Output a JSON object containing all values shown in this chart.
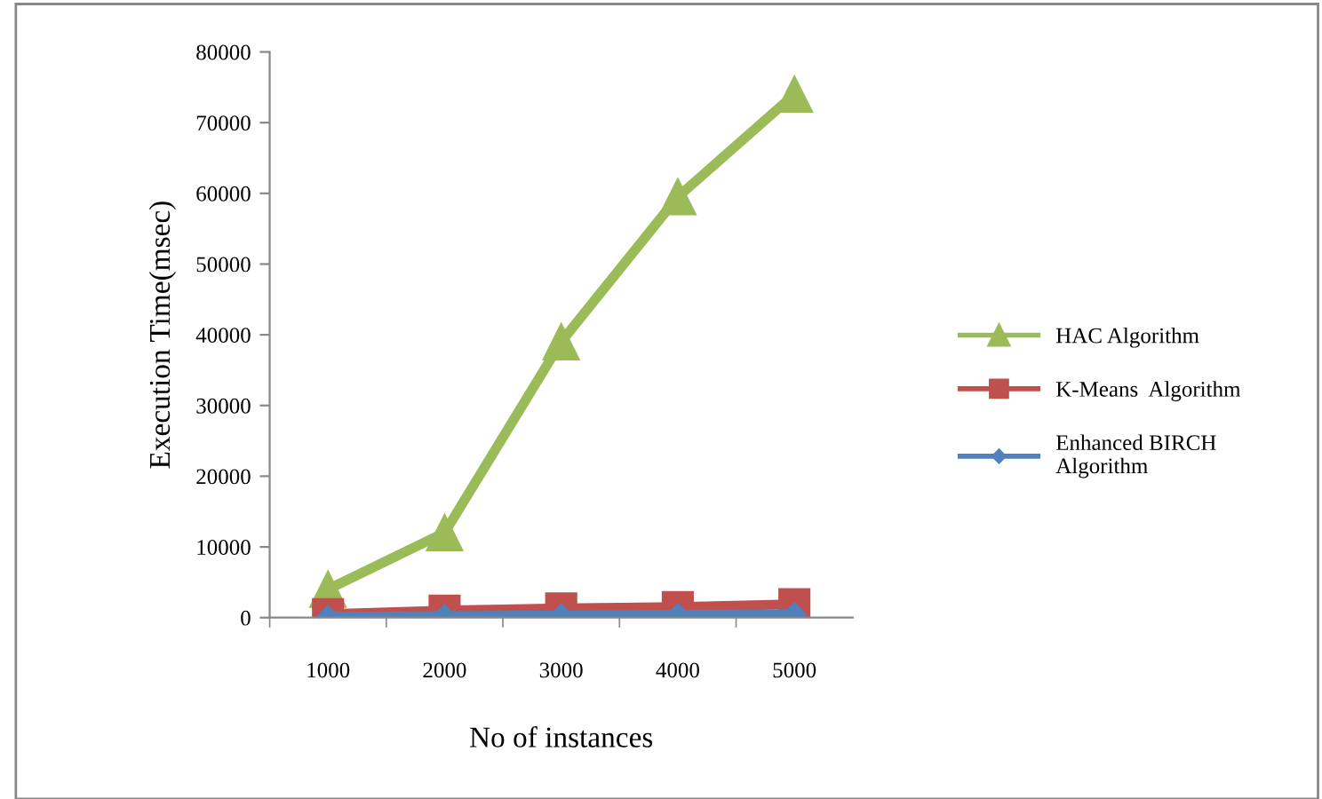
{
  "chart_data": {
    "type": "line",
    "xlabel": "No of instances",
    "ylabel": "Execution Time(msec)",
    "categories": [
      "1000",
      "2000",
      "3000",
      "4000",
      "5000"
    ],
    "series": [
      {
        "name": "HAC Algorithm",
        "color": "#9bbb59",
        "marker": "triangle",
        "values": [
          4000,
          12000,
          39000,
          59500,
          74000
        ]
      },
      {
        "name": "K-Means  Algorithm",
        "color": "#c0504d",
        "marker": "square",
        "values": [
          500,
          1000,
          1300,
          1500,
          1900
        ]
      },
      {
        "name": "Enhanced BIRCH\nAlgorithm",
        "color": "#4f81bd",
        "marker": "diamond",
        "values": [
          100,
          200,
          300,
          400,
          500
        ]
      }
    ],
    "ylim": [
      0,
      80000
    ],
    "yticks": [
      0,
      10000,
      20000,
      30000,
      40000,
      50000,
      60000,
      70000,
      80000
    ],
    "grid": false,
    "legend": "right",
    "line_style": "solid"
  }
}
